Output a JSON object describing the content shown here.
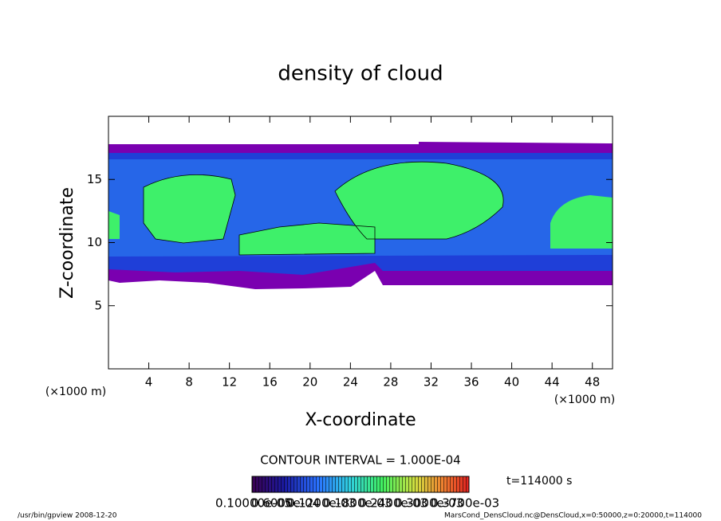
{
  "chart_data": {
    "type": "contour",
    "title": "density of cloud",
    "xlabel": "X-coordinate",
    "ylabel": "Z-coordinate",
    "xunit": "(×1000 m)",
    "yunit": "(×1000 m)",
    "xlim": [
      0,
      50
    ],
    "xticks": [
      4,
      8,
      12,
      16,
      20,
      24,
      28,
      32,
      36,
      40,
      44,
      48
    ],
    "ylim": [
      0,
      20
    ],
    "yticks": [
      5,
      10,
      15
    ],
    "contour_interval": "CONTOUR INTERVAL = 1.000E-04",
    "time": "t=114000 s",
    "colorbar_labels": [
      "0.10000e-05",
      "0.6000e-04",
      "0.1200e-03",
      "0.1800e-03",
      "0.2400e-03",
      "0.3000e-03",
      "0.3700e-03"
    ],
    "footer_left": "/usr/bin/gpview   2008-12-20",
    "footer_right": "MarsCond_DensCloud.nc@DensCloud,x=0:50000,z=0:20000,t=114000"
  }
}
